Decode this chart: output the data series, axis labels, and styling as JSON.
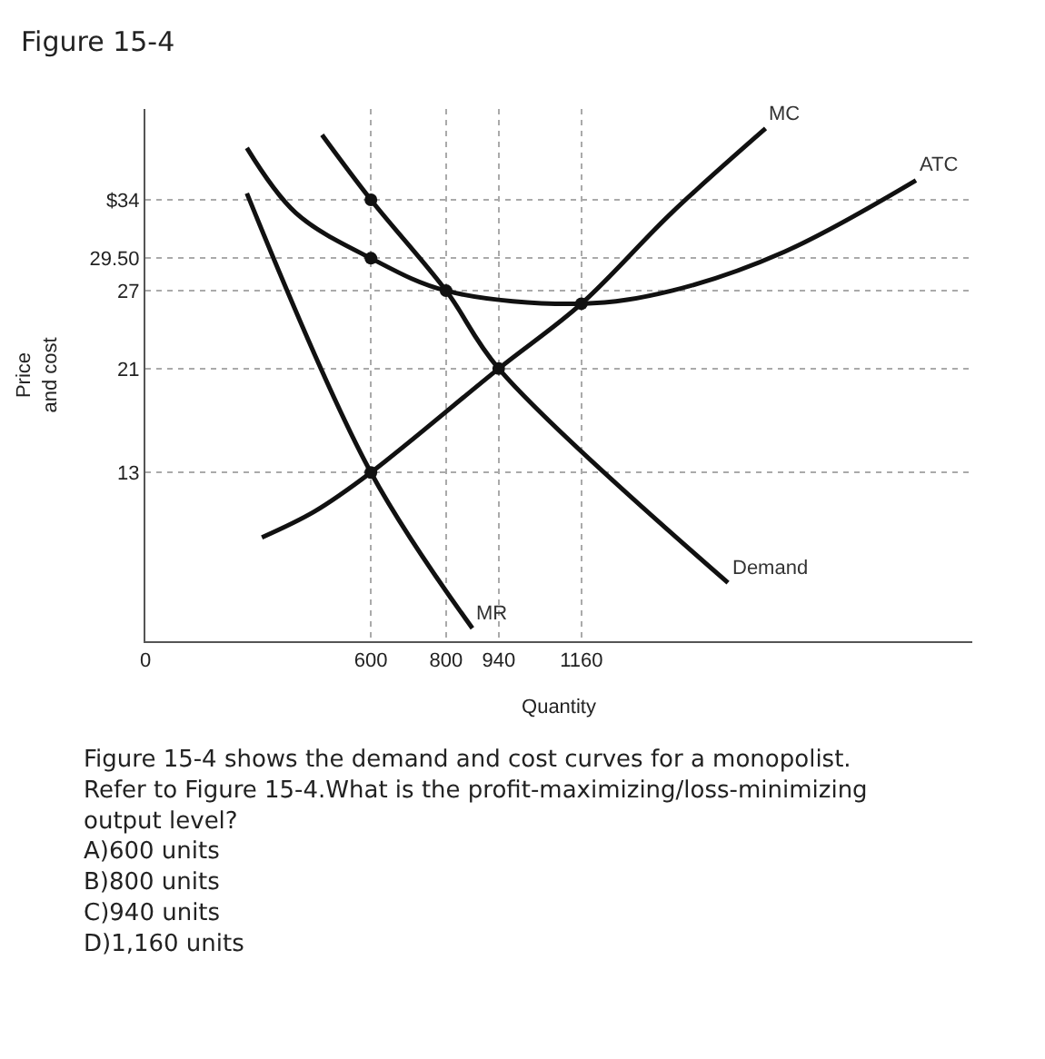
{
  "chart_data": {
    "type": "line",
    "title": "Figure 15-4",
    "xlabel": "Quantity",
    "ylabel": "Price\nand cost",
    "series": [
      {
        "name": "Demand",
        "color": "#111111",
        "x": [
          470,
          600,
          800,
          940,
          1550
        ],
        "values": [
          39,
          34,
          27,
          21,
          4.5
        ]
      },
      {
        "name": "MR",
        "color": "#111111",
        "x": [
          270,
          600,
          870
        ],
        "values": [
          34.5,
          13,
          1
        ]
      },
      {
        "name": "MC",
        "color": "#111111",
        "x": [
          310,
          450,
          600,
          940,
          1160,
          1400,
          1650
        ],
        "values": [
          8,
          10,
          13,
          21,
          26,
          33,
          39.5
        ]
      },
      {
        "name": "ATC",
        "color": "#111111",
        "x": [
          270,
          400,
          600,
          800,
          1160,
          1400,
          1700,
          2050
        ],
        "values": [
          38,
          33,
          29.5,
          27,
          26,
          27,
          30,
          35.5
        ]
      },
      {
        "type": "scatter",
        "marker": "circle",
        "color": "#111111",
        "x": [
          600,
          600,
          800,
          940,
          600,
          1160
        ],
        "values": [
          34,
          29.5,
          27,
          21,
          13,
          26
        ]
      }
    ],
    "xlim": [
      0,
      2200
    ],
    "xticks": [
      0,
      600,
      800,
      940,
      {
        "value": 1160,
        "label": "1160"
      }
    ],
    "ylim": [
      0,
      41
    ],
    "yticks": [
      {
        "value": 34,
        "label": "$34"
      },
      {
        "value": 29.5,
        "label": "29.50"
      },
      27,
      21,
      13
    ],
    "grid": true,
    "legend": false,
    "line_style": "solid",
    "annotations": [
      "Figure 15-4 shows the demand and cost curves for a monopolist.",
      "Refer to Figure 15-4.What is the profit-maximizing/loss-minimizing output level?",
      "A)600 units",
      "B)800 units",
      "C)940 units",
      "D)1,160 units"
    ]
  }
}
